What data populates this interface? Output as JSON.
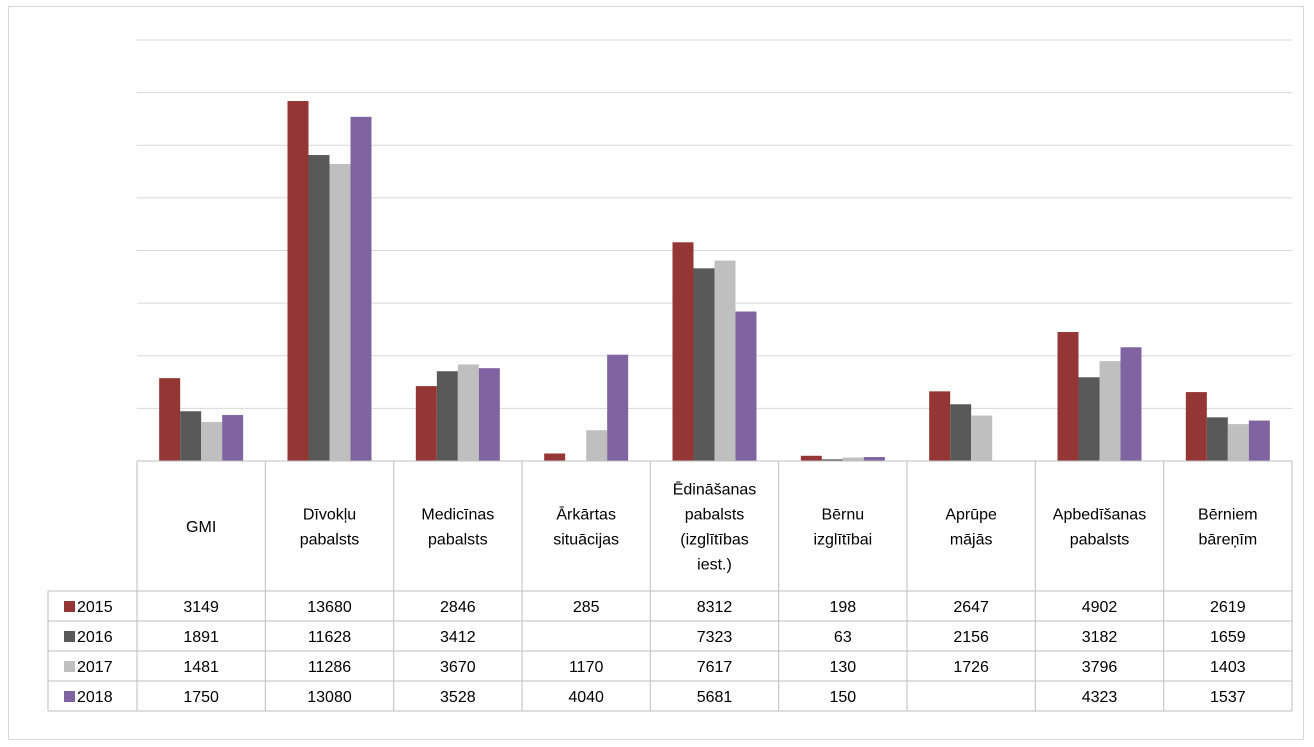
{
  "chart_data": {
    "type": "bar",
    "title": "",
    "xlabel": "",
    "ylabel": "",
    "ylim": [
      0,
      16000
    ],
    "grid": true,
    "y_tick_labels_visible": false,
    "legend_placement": "data-table-left",
    "categories": [
      [
        "GMI"
      ],
      [
        "Dīvokļu",
        "pabalsts"
      ],
      [
        "Medicīnas",
        "pabalsts"
      ],
      [
        "Ārkārtas",
        "situācijas"
      ],
      [
        "Ēdināšanas",
        "pabalsts",
        "(izglītības",
        "iest.)"
      ],
      [
        "Bērnu",
        "izglītībai"
      ],
      [
        "Aprūpe",
        "mājās"
      ],
      [
        "Apbedīšanas",
        "pabalsts"
      ],
      [
        "Bērniem",
        "bāreņīm"
      ]
    ],
    "series": [
      {
        "name": "2015",
        "color": "#943634",
        "values": [
          3149,
          13680,
          2846,
          285,
          8312,
          198,
          2647,
          4902,
          2619
        ]
      },
      {
        "name": "2016",
        "color": "#595959",
        "values": [
          1891,
          11628,
          3412,
          null,
          7323,
          63,
          2156,
          3182,
          1659
        ]
      },
      {
        "name": "2017",
        "color": "#bfbfbf",
        "values": [
          1481,
          11286,
          3670,
          1170,
          7617,
          130,
          1726,
          3796,
          1403
        ]
      },
      {
        "name": "2018",
        "color": "#8064a2",
        "values": [
          1750,
          13080,
          3528,
          4040,
          5681,
          150,
          null,
          4323,
          1537
        ]
      }
    ]
  }
}
